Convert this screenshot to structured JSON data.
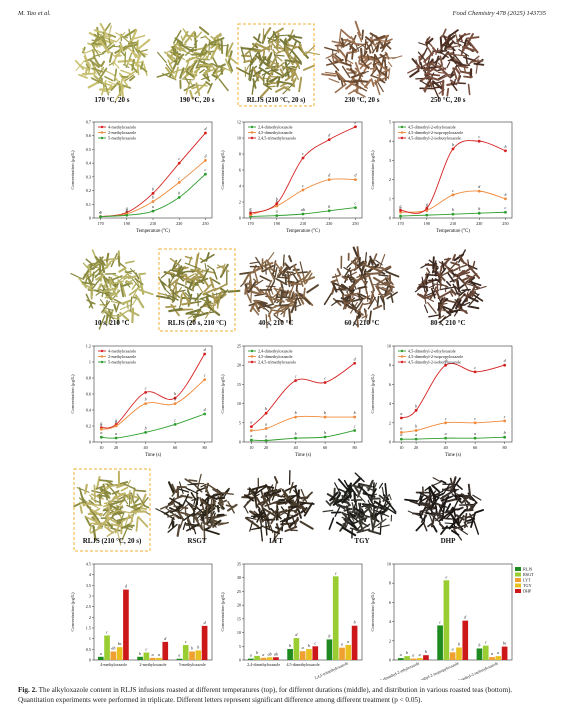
{
  "header": {
    "authors": "M. Tao et al.",
    "journal": "Food Chemistry 478 (2025) 143735"
  },
  "rows": [
    {
      "photos": {
        "labels": [
          "170 °C, 20 s",
          "190 °C, 20 s",
          "RLJS (210 °C, 20 s)",
          "230 °C, 20 s",
          "250 °C, 20 s"
        ],
        "highlight": 2
      },
      "charts": [
        {
          "type": "line",
          "x_label": "Temperature (°C)",
          "y_label": "Concentration (μg/L)",
          "x": [
            170,
            190,
            210,
            230,
            250
          ],
          "xlim": [
            165,
            255
          ],
          "xticks": [
            170,
            190,
            210,
            230,
            250
          ],
          "ylim": [
            0,
            0.7
          ],
          "yticks": [
            0,
            0.1,
            0.2,
            0.3,
            0.4,
            0.5,
            0.6,
            0.7
          ],
          "legend": "top-left",
          "series": [
            {
              "name": "4-methyloxazole",
              "color": "#d62020",
              "values": [
                0.01,
                0.04,
                0.18,
                0.4,
                0.62
              ],
              "letters": [
                "a",
                "a",
                "b",
                "c",
                "d"
              ]
            },
            {
              "name": "2-methyloxazole",
              "color": "#f08a3c",
              "values": [
                0.01,
                0.03,
                0.12,
                0.26,
                0.42
              ],
              "letters": [
                "a",
                "a",
                "b",
                "c",
                "d"
              ]
            },
            {
              "name": "5-methyloxazole",
              "color": "#2e9e2e",
              "values": [
                0.01,
                0.02,
                0.05,
                0.15,
                0.32
              ],
              "letters": [
                "a",
                "a",
                "a",
                "b",
                "c"
              ]
            }
          ]
        },
        {
          "type": "line",
          "x_label": "Temperature (°C)",
          "y_label": "Concentration (μg/L)",
          "x": [
            170,
            190,
            210,
            230,
            250
          ],
          "xlim": [
            165,
            255
          ],
          "xticks": [
            170,
            190,
            210,
            230,
            250
          ],
          "ylim": [
            0,
            12
          ],
          "yticks": [
            0,
            2,
            4,
            6,
            8,
            10,
            12
          ],
          "legend": "top-left",
          "series": [
            {
              "name": "2,4-dimethyloxazole",
              "color": "#2e9e2e",
              "values": [
                0.2,
                0.3,
                0.5,
                0.9,
                1.3
              ],
              "letters": [
                "a",
                "a",
                "ab",
                "b",
                "c"
              ]
            },
            {
              "name": "4,5-dimethyloxazole",
              "color": "#f08a3c",
              "values": [
                0.4,
                1.5,
                3.5,
                4.8,
                4.8
              ],
              "letters": [
                "a",
                "b",
                "c",
                "d",
                "d"
              ]
            },
            {
              "name": "2,4,5-trimethyloxazole",
              "color": "#d62020",
              "values": [
                0.6,
                1.8,
                7.5,
                9.8,
                11.4
              ],
              "letters": [
                "a",
                "b",
                "c",
                "d",
                "e"
              ]
            }
          ]
        },
        {
          "type": "line",
          "x_label": "Temperature (°C)",
          "y_label": "Concentration (μg/L)",
          "x": [
            170,
            190,
            210,
            230,
            250
          ],
          "xlim": [
            165,
            255
          ],
          "xticks": [
            170,
            190,
            210,
            230,
            250
          ],
          "ylim": [
            0,
            5
          ],
          "yticks": [
            0,
            1,
            2,
            3,
            4,
            5
          ],
          "legend": "top-left",
          "series": [
            {
              "name": "4,5-dimethyl-2-ethyloxazole",
              "color": "#2e9e2e",
              "values": [
                0.1,
                0.15,
                0.2,
                0.25,
                0.3
              ],
              "letters": [
                "a",
                "a",
                "b",
                "b",
                "c"
              ]
            },
            {
              "name": "4,5-dimethyl-2-isopropyloxazole",
              "color": "#f08a3c",
              "values": [
                0.3,
                0.4,
                1.2,
                1.4,
                1.0
              ],
              "letters": [
                "a",
                "a",
                "c",
                "d",
                "b"
              ]
            },
            {
              "name": "4,5-dimethyl-2-isobutyloxazole",
              "color": "#d62020",
              "values": [
                0.4,
                0.5,
                3.6,
                4.0,
                3.5
              ],
              "letters": [
                "a",
                "a",
                "b",
                "c",
                "b"
              ]
            }
          ]
        }
      ]
    },
    {
      "photos": {
        "labels": [
          "10 s, 210 °C",
          "RLJS (20 s, 210 °C)",
          "40 s, 210 °C",
          "60 s, 210 °C",
          "80 s, 210 °C"
        ],
        "highlight": 1
      },
      "charts": [
        {
          "type": "line",
          "x_label": "Time (s)",
          "y_label": "Concentration (μg/L)",
          "x": [
            10,
            20,
            40,
            60,
            80
          ],
          "xlim": [
            5,
            85
          ],
          "xticks": [
            10,
            20,
            40,
            60,
            80
          ],
          "ylim": [
            0,
            1.2
          ],
          "yticks": [
            0,
            0.2,
            0.4,
            0.6,
            0.8,
            1.0,
            1.2
          ],
          "legend": "top-left",
          "series": [
            {
              "name": "4-methyloxazole",
              "color": "#d62020",
              "values": [
                0.18,
                0.22,
                0.62,
                0.55,
                1.1
              ],
              "letters": [
                "a",
                "a",
                "c",
                "b",
                "d"
              ]
            },
            {
              "name": "2-methyloxazole",
              "color": "#f08a3c",
              "values": [
                0.16,
                0.2,
                0.48,
                0.48,
                0.78
              ],
              "letters": [
                "a",
                "a",
                "b",
                "b",
                "c"
              ]
            },
            {
              "name": "5-methyloxazole",
              "color": "#2e9e2e",
              "values": [
                0.06,
                0.05,
                0.12,
                0.22,
                0.35
              ],
              "letters": [
                "a",
                "a",
                "b",
                "c",
                "d"
              ]
            }
          ]
        },
        {
          "type": "line",
          "x_label": "Time (s)",
          "y_label": "Concentration (μg/L)",
          "x": [
            10,
            20,
            40,
            60,
            80
          ],
          "xlim": [
            5,
            85
          ],
          "xticks": [
            10,
            20,
            40,
            60,
            80
          ],
          "ylim": [
            0,
            25
          ],
          "yticks": [
            0,
            5,
            10,
            15,
            20,
            25
          ],
          "legend": "top-left",
          "series": [
            {
              "name": "2,4-dimethyloxazole",
              "color": "#2e9e2e",
              "values": [
                0.5,
                0.4,
                1.0,
                1.3,
                3.0
              ],
              "letters": [
                "a",
                "a",
                "b",
                "b",
                "c"
              ]
            },
            {
              "name": "4,5-dimethyloxazole",
              "color": "#f08a3c",
              "values": [
                3.0,
                3.5,
                6.5,
                6.5,
                6.5
              ],
              "letters": [
                "a",
                "a",
                "b",
                "b",
                "b"
              ]
            },
            {
              "name": "2,4,5-trimethyloxazole",
              "color": "#d62020",
              "values": [
                4.0,
                7.5,
                16.0,
                15.5,
                20.5
              ],
              "letters": [
                "a",
                "b",
                "c",
                "c",
                "d"
              ]
            }
          ]
        },
        {
          "type": "line",
          "x_label": "Time (s)",
          "y_label": "Concentration (μg/L)",
          "x": [
            10,
            20,
            40,
            60,
            80
          ],
          "xlim": [
            5,
            85
          ],
          "xticks": [
            10,
            20,
            40,
            60,
            80
          ],
          "ylim": [
            0,
            10
          ],
          "yticks": [
            0,
            2,
            4,
            6,
            8,
            10
          ],
          "legend": "top-left",
          "series": [
            {
              "name": "4,5-dimethyl-2-ethyloxazole",
              "color": "#2e9e2e",
              "values": [
                0.3,
                0.3,
                0.4,
                0.4,
                0.5
              ],
              "letters": [
                "a",
                "a",
                "a",
                "a",
                "b"
              ]
            },
            {
              "name": "4,5-dimethyl-2-isopropyloxazole",
              "color": "#f08a3c",
              "values": [
                1.0,
                1.2,
                2.0,
                2.0,
                2.2
              ],
              "letters": [
                "a",
                "b",
                "c",
                "c",
                "c"
              ]
            },
            {
              "name": "4,5-dimethyl-2-isobutyloxazole",
              "color": "#d62020",
              "values": [
                2.5,
                3.3,
                8.0,
                7.3,
                8.0
              ],
              "letters": [
                "a",
                "b",
                "d",
                "c",
                "d"
              ]
            }
          ]
        }
      ]
    },
    {
      "photos": {
        "labels": [
          "RLJS (210 °C, 20 s)",
          "RSGT",
          "LYT",
          "TGY",
          "DHP"
        ],
        "highlight": 0
      },
      "charts": [
        {
          "type": "bar",
          "y_label": "Concentration (μg/L)",
          "categories": [
            "4-methyloxazole",
            "2-methyloxazole",
            "5-methyloxazole"
          ],
          "ylim": [
            0,
            4.5
          ],
          "yticks": [
            0,
            0.5,
            1,
            1.5,
            2,
            2.5,
            3,
            3.5,
            4,
            4.5
          ],
          "series": [
            {
              "color": "#1f8a1f",
              "values": [
                0.15,
                0.15,
                0.06
              ],
              "letters": [
                "a",
                "b",
                "a"
              ]
            },
            {
              "color": "#9acd32",
              "values": [
                1.15,
                0.35,
                0.7
              ],
              "letters": [
                "c",
                "c",
                "c"
              ]
            },
            {
              "color": "#f0a030",
              "values": [
                0.4,
                0.1,
                0.4
              ],
              "letters": [
                "ab",
                "a",
                "b"
              ]
            },
            {
              "color": "#e8c020",
              "values": [
                0.6,
                0.1,
                0.45
              ],
              "letters": [
                "bc",
                "a",
                "b"
              ]
            },
            {
              "color": "#cc1818",
              "values": [
                3.3,
                0.85,
                1.6
              ],
              "letters": [
                "d",
                "d",
                "d"
              ]
            }
          ]
        },
        {
          "type": "bar",
          "y_label": "Concentration (μg/L)",
          "categories": [
            "2,4-dimethyloxazole",
            "4,5-dimethyloxazole",
            "2,4,5-trimethyloxazole"
          ],
          "ylim": [
            0,
            35
          ],
          "yticks": [
            0,
            5,
            10,
            15,
            20,
            25,
            30,
            35
          ],
          "series": [
            {
              "color": "#1f8a1f",
              "values": [
                0.5,
                4.0,
                7.5
              ],
              "letters": [
                "a",
                "b",
                "b"
              ]
            },
            {
              "color": "#9acd32",
              "values": [
                1.5,
                8.0,
                30.5
              ],
              "letters": [
                "b",
                "d",
                "c"
              ]
            },
            {
              "color": "#f0a030",
              "values": [
                0.8,
                3.2,
                4.5
              ],
              "letters": [
                "a",
                "a",
                "a"
              ]
            },
            {
              "color": "#e8c020",
              "values": [
                1.0,
                4.0,
                5.5
              ],
              "letters": [
                "ab",
                "b",
                "a"
              ]
            },
            {
              "color": "#cc1818",
              "values": [
                1.0,
                5.0,
                12.5
              ],
              "letters": [
                "ab",
                "c",
                "b"
              ]
            }
          ]
        },
        {
          "type": "bar",
          "y_label": "Concentration (μg/L)",
          "categories": [
            "4,5-dimethyl-2-ethyloxazole",
            "4,5-dimethyl-2-isopropyloxazole",
            "4,5-dimethyl-2-isobutyloxazole"
          ],
          "ylim": [
            0,
            10
          ],
          "yticks": [
            0,
            2,
            4,
            6,
            8,
            10
          ],
          "legend": "top-right",
          "series": [
            {
              "name": "RLJS",
              "color": "#1f8a1f",
              "values": [
                0.2,
                3.6,
                1.2
              ],
              "letters": [
                "a",
                "c",
                "b"
              ]
            },
            {
              "name": "RSGT",
              "color": "#9acd32",
              "values": [
                0.4,
                8.3,
                1.5
              ],
              "letters": [
                "b",
                "e",
                "c"
              ]
            },
            {
              "name": "LYT",
              "color": "#f0a030",
              "values": [
                0.15,
                0.8,
                0.3
              ],
              "letters": [
                "a",
                "a",
                "a"
              ]
            },
            {
              "name": "TGY",
              "color": "#e8c020",
              "values": [
                0.2,
                1.3,
                0.4
              ],
              "letters": [
                "a",
                "b",
                "a"
              ]
            },
            {
              "name": "DHP",
              "color": "#cc1818",
              "values": [
                0.5,
                4.1,
                1.4
              ],
              "letters": [
                "b",
                "d",
                "bc"
              ]
            }
          ]
        }
      ]
    }
  ],
  "caption": {
    "label": "Fig. 2.",
    "text": "The alkyloxazole content in RLJS infusions roasted at different temperatures (top), for different durations (middle), and distribution in various roasted teas (bottom). Quantitation experiments were performed in triplicate. Different letters represent significant difference among different treatment (p < 0.05)."
  }
}
